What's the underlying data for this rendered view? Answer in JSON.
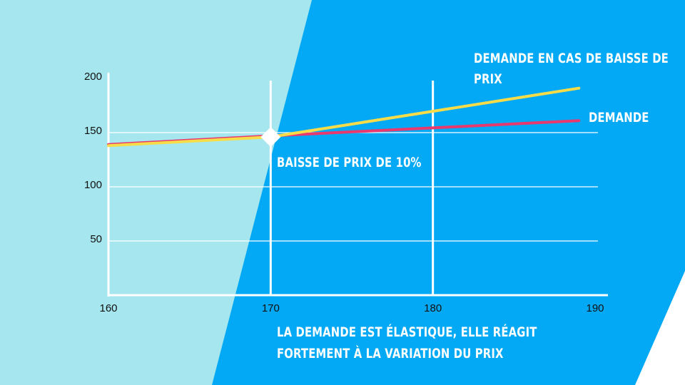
{
  "colors": {
    "background_light": "#a6e6ee",
    "background_blue": "#03a9f4",
    "series_baisse": "#f7dc4a",
    "series_demande": "#e8396e",
    "axis": "#ffffff",
    "text": "#ffffff",
    "tick_text": "#111111"
  },
  "chart_data": {
    "type": "line",
    "title": "",
    "xlabel": "",
    "ylabel": "",
    "xlim": [
      160,
      190
    ],
    "ylim": [
      0,
      200
    ],
    "x_ticks": [
      "160",
      "170",
      "180",
      "190"
    ],
    "y_ticks": [
      "50",
      "100",
      "150",
      "200"
    ],
    "grid": "horizontal and vertical at 170 and 180",
    "series": [
      {
        "name": "DEMANDE EN CAS DE BAISSE DE PRIX",
        "color": "#f7dc4a",
        "x": [
          160,
          170,
          189
        ],
        "y": [
          138,
          146,
          191
        ]
      },
      {
        "name": "DEMANDE",
        "color": "#e8396e",
        "x": [
          160,
          170,
          189
        ],
        "y": [
          139,
          147,
          161
        ]
      }
    ],
    "marker": {
      "x": 170,
      "y": 146,
      "shape": "diamond"
    }
  },
  "labels": {
    "series_baisse_line1": "DEMANDE EN CAS DE BAISSE DE",
    "series_baisse_line2": "PRIX",
    "series_demande": "DEMANDE",
    "annotation": "BAISSE DE PRIX DE 10%",
    "caption_line1": "LA DEMANDE EST ÉLASTIQUE, ELLE RÉAGIT",
    "caption_line2": "FORTEMENT À LA VARIATION DU PRIX"
  }
}
